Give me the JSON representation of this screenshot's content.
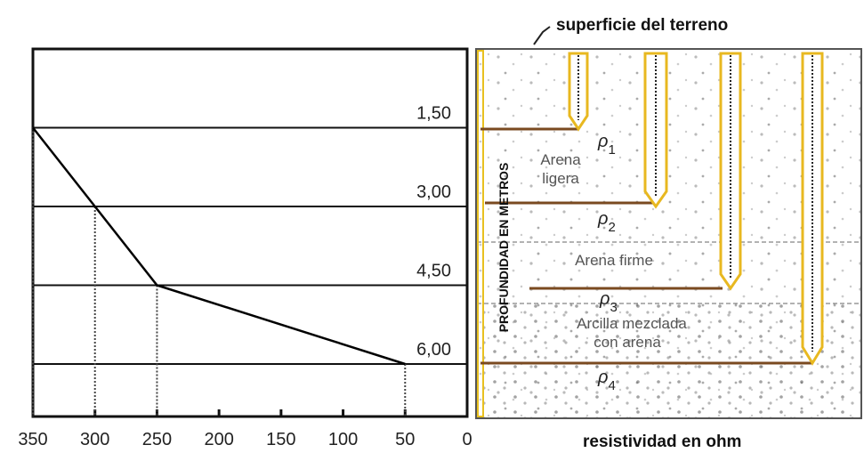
{
  "chart_data": {
    "type": "line",
    "x": [
      350,
      300,
      250,
      50
    ],
    "values": [
      1.5,
      3,
      4.5,
      6
    ],
    "color": "#000000",
    "xlim": [
      350,
      0
    ],
    "xticks": [
      350,
      300,
      250,
      200,
      150,
      100,
      50,
      0
    ],
    "ylim": [
      0,
      7
    ],
    "yticks": [
      {
        "value": 1.5,
        "label": "1,50"
      },
      {
        "value": 3,
        "label": "3,00"
      },
      {
        "value": 4.5,
        "label": "4,50"
      },
      {
        "value": 6,
        "label": "6,00"
      }
    ],
    "grid": true
  },
  "diagram": {
    "surface_label": "superficie del terreno",
    "bottom_label": "resistividad en ohm",
    "depth_label": "PROFUNDIDAD EN METROS",
    "layers": [
      {
        "name_lines": [
          "Arena",
          "ligera"
        ],
        "symbol": "ρ",
        "subscript": "1"
      },
      {
        "symbol": "ρ",
        "subscript": "2"
      },
      {
        "name_lines": [
          "Arena firme"
        ],
        "symbol": "ρ",
        "subscript": "3"
      },
      {
        "name_lines": [
          "Arcilla mezclada",
          "con arena"
        ],
        "symbol": "ρ",
        "subscript": "4"
      }
    ]
  }
}
